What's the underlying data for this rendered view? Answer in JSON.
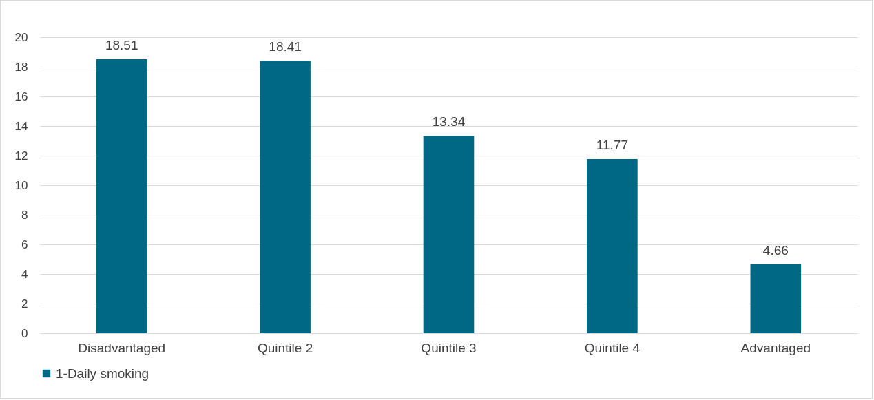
{
  "chart_data": {
    "type": "bar",
    "categories": [
      "Disadvantaged",
      "Quintile 2",
      "Quintile 3",
      "Quintile 4",
      "Advantaged"
    ],
    "series": [
      {
        "name": "1-Daily smoking",
        "color": "#006884",
        "values": [
          18.51,
          18.41,
          13.34,
          11.77,
          4.66
        ]
      }
    ],
    "ylim": [
      0,
      20
    ],
    "yticks": [
      0,
      2,
      4,
      6,
      8,
      10,
      12,
      14,
      16,
      18,
      20
    ],
    "grid": "y",
    "legend": "bottom",
    "data_labels": true
  }
}
